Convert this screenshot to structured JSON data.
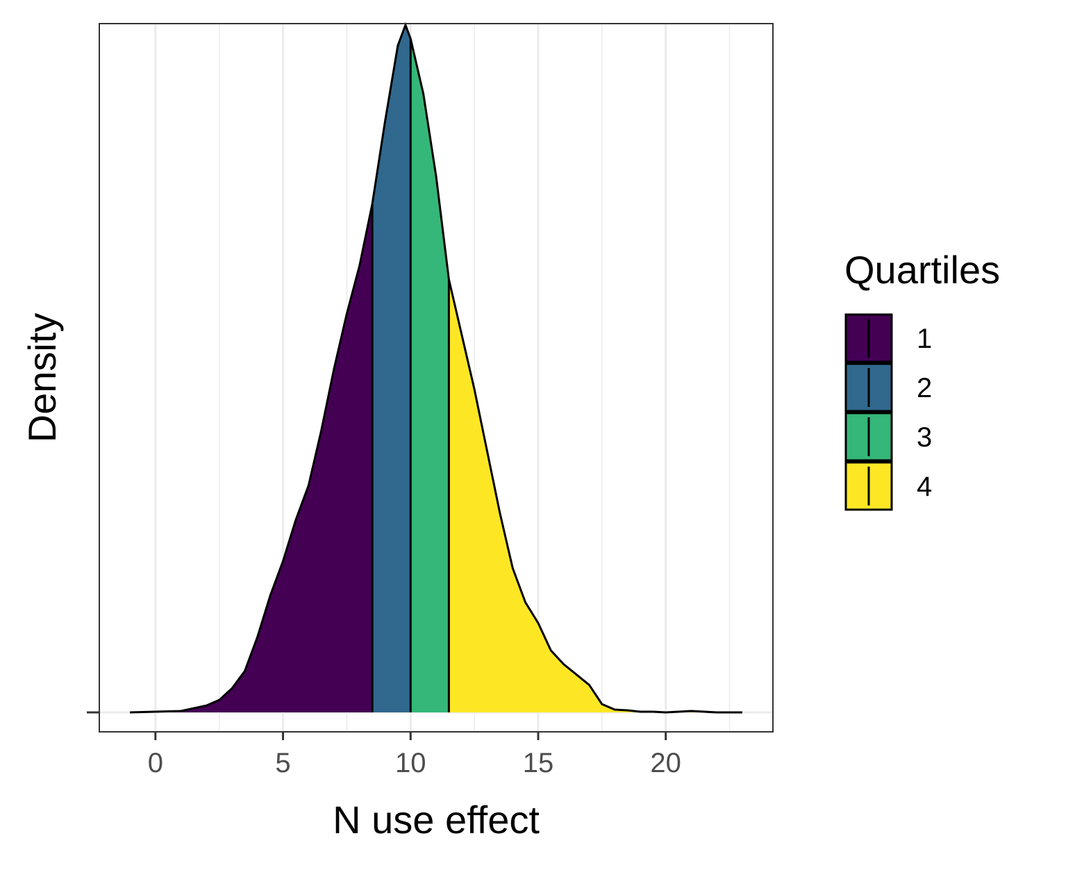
{
  "chart_data": {
    "type": "area",
    "subtype": "density-ridge-with-quartile-fill",
    "xlabel": "N use effect",
    "ylabel": "Density",
    "xlim": [
      -2.2,
      24.2
    ],
    "ylim": [
      0,
      1.03
    ],
    "x_ticks": [
      0,
      5,
      10,
      15,
      20
    ],
    "y_ticks": [],
    "grid": "vertical",
    "legend": {
      "title": "Quartiles",
      "placement": "right",
      "entries": [
        {
          "label": "1",
          "color": "#440154"
        },
        {
          "label": "2",
          "color": "#31688E"
        },
        {
          "label": "3",
          "color": "#35B779"
        },
        {
          "label": "4",
          "color": "#FDE725"
        }
      ]
    },
    "quartile_cutoffs": [
      8.5,
      10.0,
      11.5
    ],
    "density": {
      "x": [
        -1.0,
        0.0,
        1.0,
        2.0,
        2.5,
        3.0,
        3.5,
        4.0,
        4.5,
        5.0,
        5.5,
        6.0,
        6.5,
        7.0,
        7.5,
        8.0,
        8.5,
        9.0,
        9.5,
        9.8,
        10.0,
        10.5,
        11.0,
        11.5,
        12.0,
        12.5,
        13.0,
        13.5,
        14.0,
        14.5,
        15.0,
        15.5,
        16.0,
        17.0,
        17.5,
        18.0,
        18.5,
        19.0,
        19.5,
        20.0,
        21.0,
        22.0,
        23.0
      ],
      "y": [
        0.0,
        0.001,
        0.002,
        0.01,
        0.018,
        0.035,
        0.06,
        0.11,
        0.17,
        0.22,
        0.28,
        0.33,
        0.41,
        0.5,
        0.58,
        0.65,
        0.74,
        0.86,
        0.97,
        1.0,
        0.98,
        0.9,
        0.78,
        0.63,
        0.55,
        0.47,
        0.38,
        0.29,
        0.21,
        0.16,
        0.13,
        0.09,
        0.07,
        0.04,
        0.012,
        0.004,
        0.003,
        0.001,
        0.001,
        0.0,
        0.002,
        0.0,
        0.0
      ]
    }
  }
}
